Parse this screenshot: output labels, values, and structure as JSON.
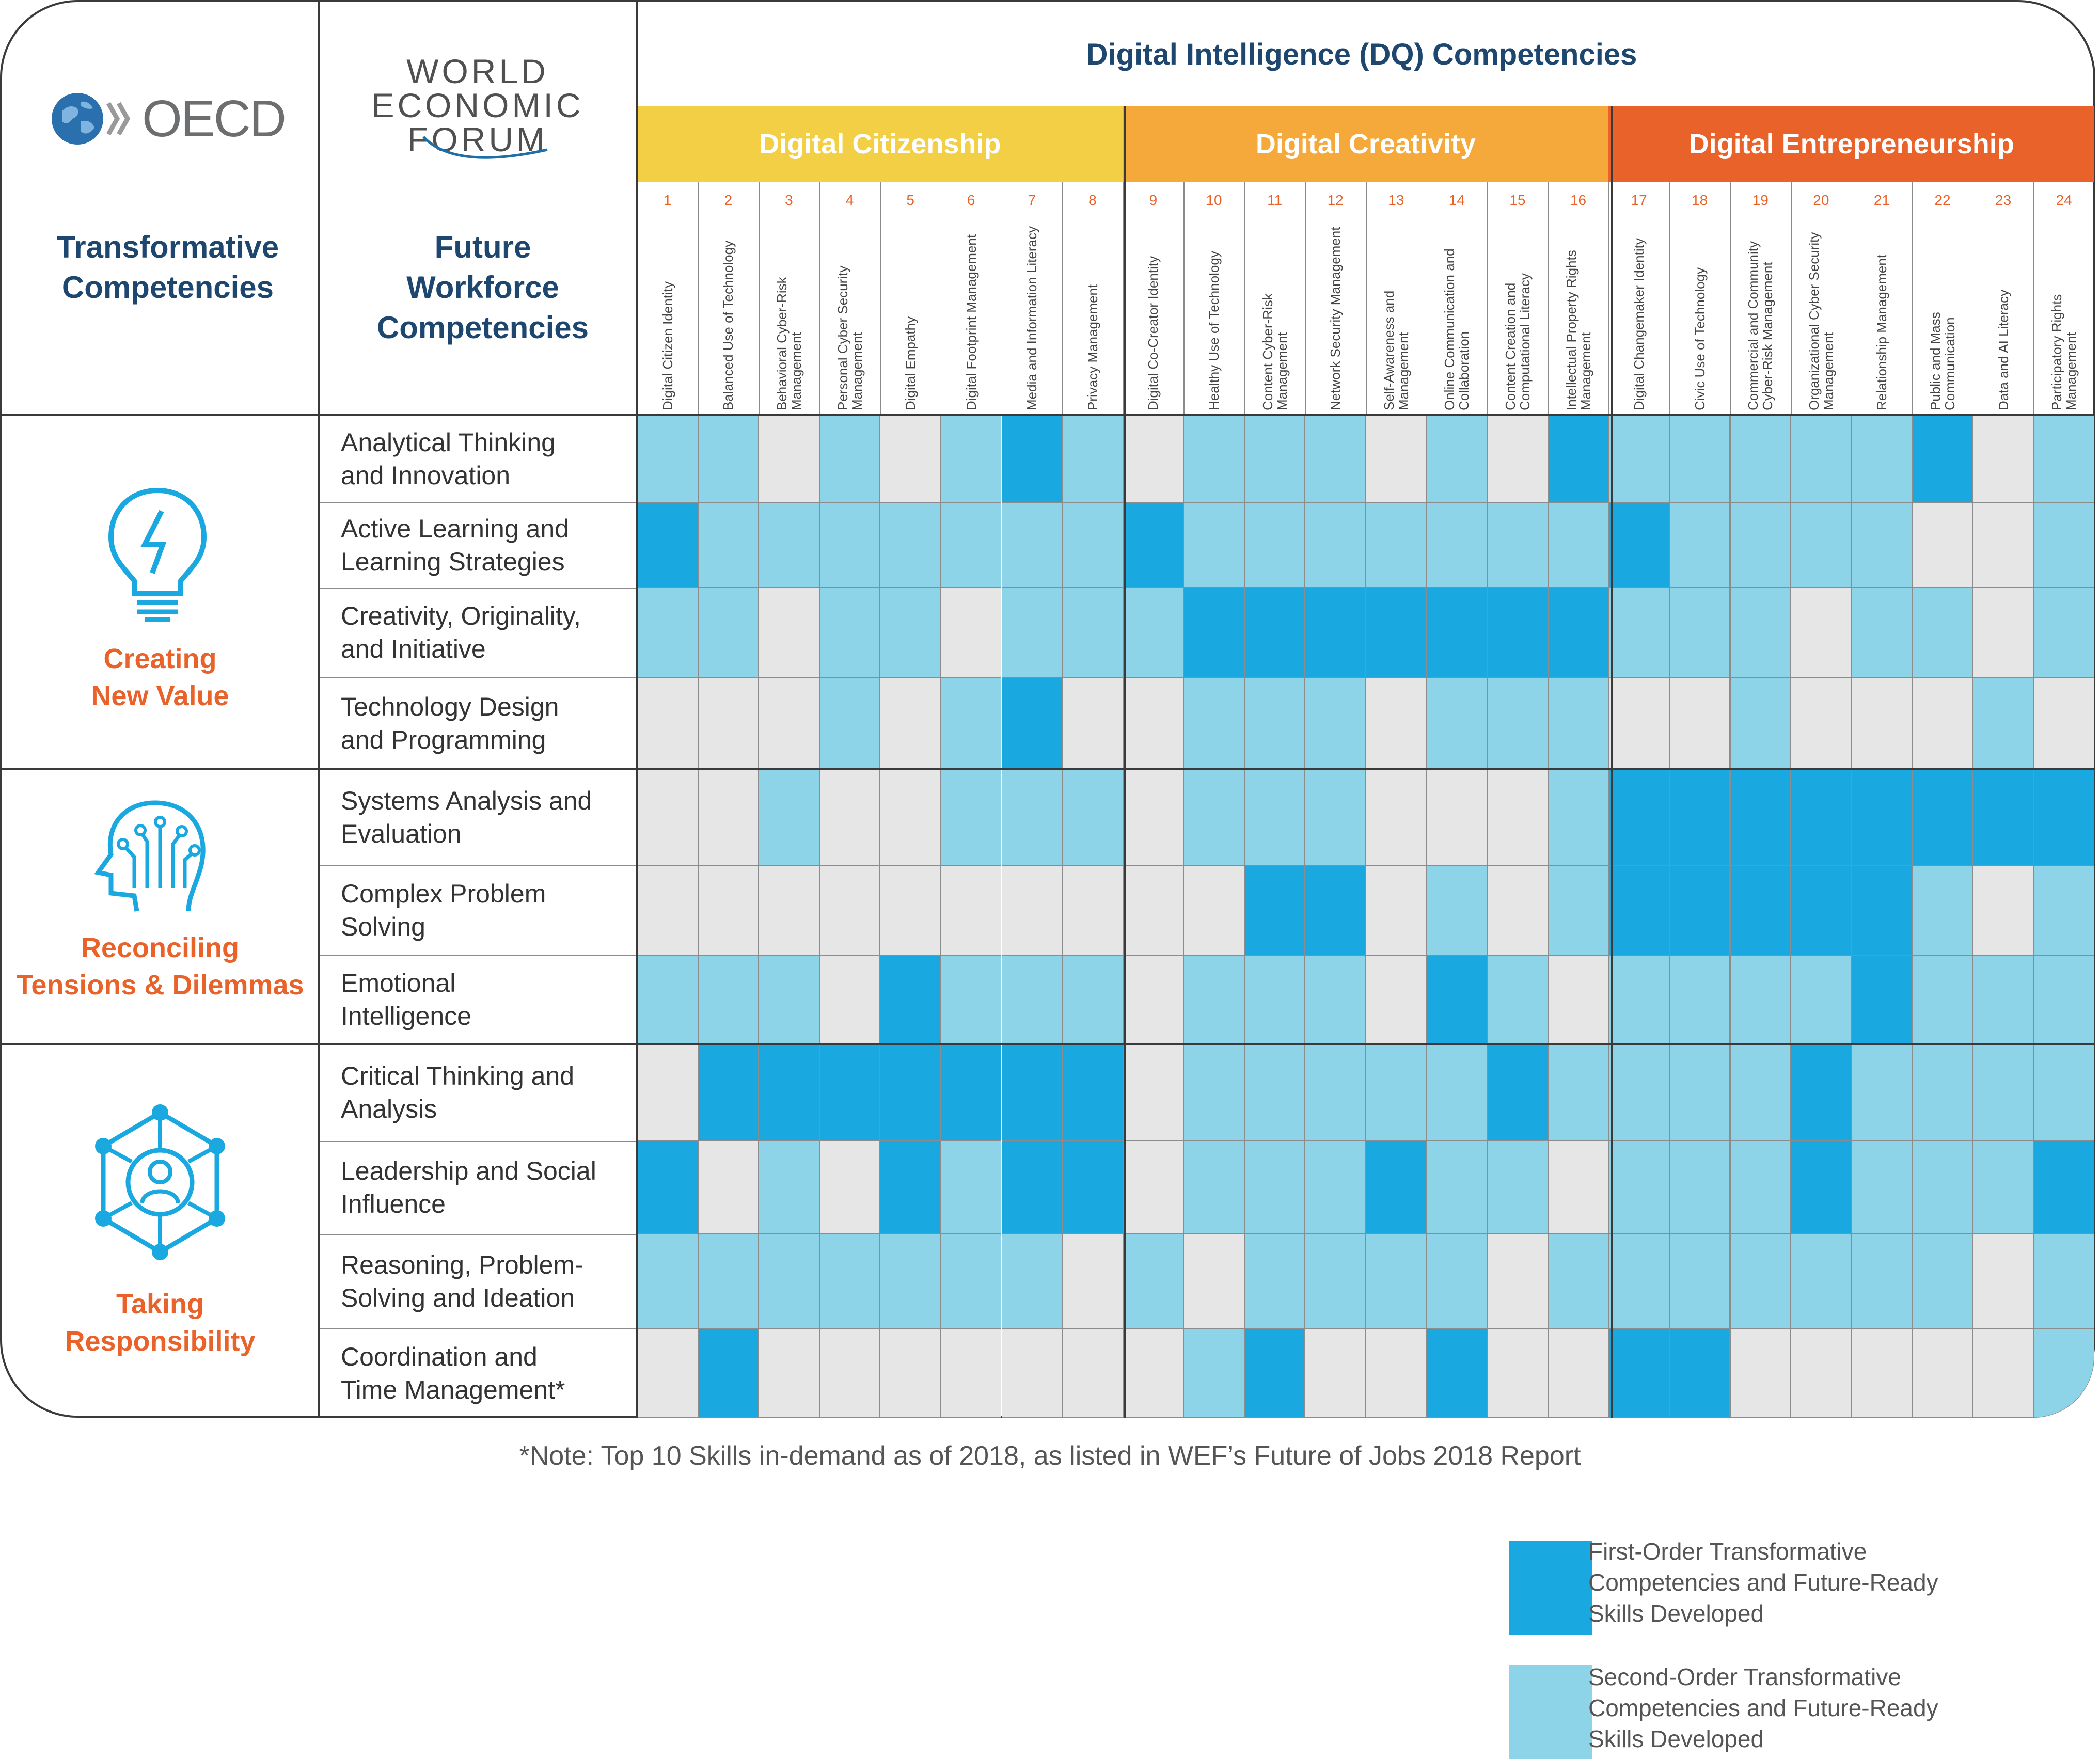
{
  "logos": {
    "oecd_text": "OECD",
    "wef_lines": [
      "WORLD",
      "ECONOMIC",
      "FORUM"
    ]
  },
  "headers": {
    "transformative": [
      "Transformative",
      "Competencies"
    ],
    "future_workforce": [
      "Future",
      "Workforce",
      "Competencies"
    ],
    "dq_title": "Digital Intelligence (DQ) Competencies"
  },
  "dq_categories": [
    {
      "label": "Digital Citizenship",
      "color": "#f2cf45"
    },
    {
      "label": "Digital Creativity",
      "color": "#f5a93b"
    },
    {
      "label": "Digital Entrepreneurship",
      "color": "#e8622a"
    }
  ],
  "dq_numbers": [
    "1",
    "2",
    "3",
    "4",
    "5",
    "6",
    "7",
    "8",
    "9",
    "10",
    "11",
    "12",
    "13",
    "14",
    "15",
    "16",
    "17",
    "18",
    "19",
    "20",
    "21",
    "22",
    "23",
    "24"
  ],
  "dq_competencies": [
    "Digital Citizen Identity",
    "Balanced Use of Technology",
    "Behavioral Cyber-Risk Management",
    "Personal Cyber Security Management",
    "Digital Empathy",
    "Digital Footprint Management",
    "Media and Information Literacy",
    "Privacy Management",
    "Digital Co-Creator Identity",
    "Healthy Use of Technology",
    "Content Cyber-Risk Management",
    "Network Security Management",
    "Self-Awareness and Management",
    "Online Communication and Collaboration",
    "Content Creation and Computational Literacy",
    "Intellectual Property Rights Management",
    "Digital Changemaker Identity",
    "Civic Use of Technology",
    "Commercial and Community Cyber-Risk Management",
    "Organizational Cyber Security Management",
    "Relationship Management",
    "Public and Mass Communication",
    "Data and AI Literacy",
    "Participatory Rights Management"
  ],
  "groups": [
    {
      "label": [
        "Creating",
        "New Value"
      ],
      "icon": "lightbulb-icon"
    },
    {
      "label": [
        "Reconciling",
        "Tensions & Dilemmas"
      ],
      "icon": "head-circuit-icon"
    },
    {
      "label": [
        "Taking",
        "Responsibility"
      ],
      "icon": "network-person-icon"
    }
  ],
  "skills": [
    [
      "Analytical Thinking",
      "and Innovation"
    ],
    [
      "Active Learning and",
      "Learning Strategies"
    ],
    [
      "Creativity, Originality,",
      "and Initiative"
    ],
    [
      "Technology Design",
      "and Programming"
    ],
    [
      "Systems Analysis and",
      "Evaluation"
    ],
    [
      "Complex Problem",
      "Solving"
    ],
    [
      "Emotional",
      "Intelligence"
    ],
    [
      "Critical Thinking and",
      "Analysis"
    ],
    [
      "Leadership and Social",
      "Influence"
    ],
    [
      "Reasoning, Problem-",
      "Solving and Ideation"
    ],
    [
      "Coordination and",
      "Time Management*"
    ]
  ],
  "matrix": [
    "220202120222020122222102",
    "122222221222222212222002",
    "220220222111111122202202",
    "000202100222022200200020",
    "002002220222000211111111",
    "000000000011020211111202",
    "222012220222012022221222",
    "011111110222221222212222",
    "102012110222122022212221",
    "222222202022220222222202",
    "010000000210010011000002"
  ],
  "colors": {
    "first_order": "#1aa8e0",
    "second_order": "#8dd4e8",
    "none": "#e6e6e6",
    "accent_orange": "#e8622a",
    "navy": "#1e4770"
  },
  "note": "*Note: Top 10 Skills in-demand as of 2018, as listed in WEF’s Future of Jobs 2018 Report",
  "legend": [
    {
      "lines": [
        "First-Order Transformative",
        "Competencies and Future-Ready",
        "Skills Developed"
      ],
      "color": "#1aa8e0"
    },
    {
      "lines": [
        "Second-Order Transformative",
        "Competencies and Future-Ready",
        "Skills Developed"
      ],
      "color": "#8dd4e8"
    }
  ]
}
